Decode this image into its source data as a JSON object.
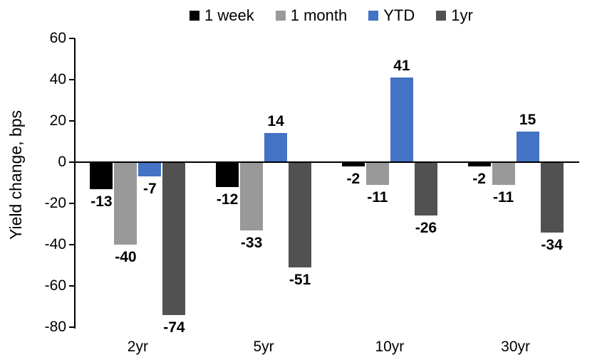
{
  "chart_data": {
    "type": "bar",
    "title": "",
    "xlabel": "",
    "ylabel": "Yield change, bps",
    "categories": [
      "2yr",
      "5yr",
      "10yr",
      "30yr"
    ],
    "series": [
      {
        "name": "1 week",
        "color": "#000000",
        "values": [
          -13,
          -12,
          -2,
          -2
        ]
      },
      {
        "name": "1 month",
        "color": "#999999",
        "values": [
          -40,
          -33,
          -11,
          -11
        ]
      },
      {
        "name": "YTD",
        "color": "#4472C4",
        "values": [
          -7,
          14,
          41,
          15
        ]
      },
      {
        "name": "1yr",
        "color": "#515151",
        "values": [
          -74,
          -51,
          -26,
          -34
        ]
      }
    ],
    "ylim": [
      -80,
      60
    ],
    "yticks": [
      "60",
      "40",
      "20",
      "0",
      "-20",
      "-40",
      "-60",
      "-80"
    ],
    "grid": false,
    "legend_position": "top",
    "data_labels": true,
    "axis_color": "#000000",
    "background_color": "#ffffff"
  }
}
